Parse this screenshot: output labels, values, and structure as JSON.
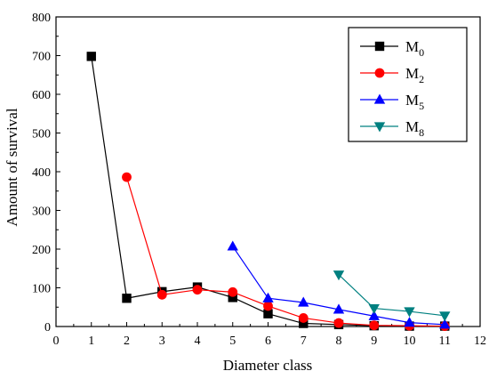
{
  "chart_data": {
    "type": "line",
    "title": "",
    "xlabel": "Diameter class",
    "ylabel": "Amount of survival",
    "xlim": [
      0,
      12
    ],
    "ylim": [
      0,
      800
    ],
    "xticks": [
      0,
      1,
      2,
      3,
      4,
      5,
      6,
      7,
      8,
      9,
      10,
      11,
      12
    ],
    "yticks": [
      0,
      100,
      200,
      300,
      400,
      500,
      600,
      700,
      800
    ],
    "grid": false,
    "legend_position": "top-right",
    "series": [
      {
        "name": "M",
        "subscript": "0",
        "color": "#000000",
        "marker": "square",
        "x": [
          1,
          2,
          3,
          4,
          5,
          6,
          7,
          8,
          9,
          10,
          11
        ],
        "y": [
          698,
          73,
          90,
          102,
          75,
          33,
          8,
          5,
          2,
          1,
          1
        ]
      },
      {
        "name": "M",
        "subscript": "2",
        "color": "#ff0000",
        "marker": "circle",
        "x": [
          2,
          3,
          4,
          5,
          6,
          7,
          8,
          9,
          10,
          11
        ],
        "y": [
          386,
          82,
          95,
          89,
          53,
          22,
          9,
          3,
          2,
          1
        ]
      },
      {
        "name": "M",
        "subscript": "5",
        "color": "#0000ff",
        "marker": "triangle-up",
        "x": [
          5,
          6,
          7,
          8,
          9,
          10,
          11
        ],
        "y": [
          207,
          73,
          62,
          44,
          27,
          10,
          5
        ]
      },
      {
        "name": "M",
        "subscript": "8",
        "color": "#008080",
        "marker": "triangle-down",
        "x": [
          8,
          9,
          10,
          11
        ],
        "y": [
          134,
          47,
          39,
          28
        ]
      }
    ]
  }
}
